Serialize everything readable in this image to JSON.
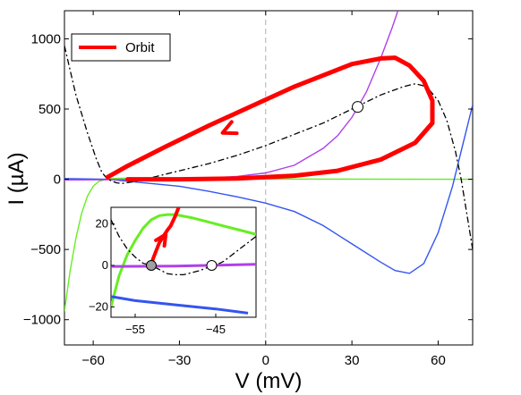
{
  "chart_data": {
    "type": "line",
    "title": "",
    "xlabel": "V (mV)",
    "ylabel": "I (µA)",
    "xlim": [
      -70,
      72
    ],
    "ylim": [
      -1180,
      1200
    ],
    "x_ticks": [
      -60,
      -30,
      0,
      30,
      60
    ],
    "y_ticks": [
      -1000,
      -500,
      0,
      500,
      1000
    ],
    "x_tick_labels": [
      "−60",
      "−30",
      "0",
      "30",
      "60"
    ],
    "y_tick_labels": [
      "−1000",
      "−500",
      "0",
      "500",
      "1000"
    ],
    "legend": {
      "position": "top-left",
      "entries": [
        "Orbit"
      ]
    },
    "series": [
      {
        "name": "Orbit",
        "color": "#ff0000",
        "style": "thick-solid",
        "points": [
          [
            -48,
            0
          ],
          [
            -30,
            0
          ],
          [
            -10,
            5
          ],
          [
            10,
            25
          ],
          [
            25,
            60
          ],
          [
            40,
            140
          ],
          [
            52,
            260
          ],
          [
            58,
            400
          ],
          [
            58,
            560
          ],
          [
            55,
            700
          ],
          [
            50,
            810
          ],
          [
            45,
            865
          ],
          [
            40,
            860
          ],
          [
            30,
            820
          ],
          [
            20,
            740
          ],
          [
            10,
            660
          ],
          [
            -5,
            520
          ],
          [
            -20,
            380
          ],
          [
            -35,
            230
          ],
          [
            -48,
            95
          ],
          [
            -55,
            15
          ]
        ],
        "arrow_at": [
          -15,
          330
        ]
      },
      {
        "name": "",
        "color": "#000000",
        "style": "dash-dot",
        "points": [
          [
            -70,
            950
          ],
          [
            -66,
            600
          ],
          [
            -62,
            330
          ],
          [
            -59,
            150
          ],
          [
            -57,
            50
          ],
          [
            -55,
            0
          ],
          [
            -52,
            -25
          ],
          [
            -50,
            -30
          ],
          [
            -45,
            -15
          ],
          [
            -40,
            10
          ],
          [
            -30,
            60
          ],
          [
            -20,
            110
          ],
          [
            -10,
            170
          ],
          [
            0,
            240
          ],
          [
            10,
            320
          ],
          [
            20,
            400
          ],
          [
            30,
            500
          ],
          [
            40,
            600
          ],
          [
            48,
            660
          ],
          [
            52,
            680
          ],
          [
            56,
            660
          ],
          [
            60,
            560
          ],
          [
            63,
            420
          ],
          [
            66,
            200
          ],
          [
            68,
            0
          ],
          [
            70,
            -250
          ],
          [
            72,
            -500
          ]
        ]
      },
      {
        "name": "",
        "color": "#b040e8",
        "style": "solid",
        "points": [
          [
            -70,
            -5
          ],
          [
            -50,
            -3
          ],
          [
            -30,
            2
          ],
          [
            -20,
            8
          ],
          [
            -10,
            20
          ],
          [
            0,
            45
          ],
          [
            10,
            100
          ],
          [
            20,
            220
          ],
          [
            25,
            310
          ],
          [
            30,
            440
          ],
          [
            35,
            620
          ],
          [
            40,
            860
          ],
          [
            44,
            1080
          ],
          [
            46,
            1200
          ]
        ]
      },
      {
        "name": "",
        "color": "#3355ee",
        "style": "solid",
        "points": [
          [
            -70,
            5
          ],
          [
            -55,
            0
          ],
          [
            -40,
            -30
          ],
          [
            -30,
            -50
          ],
          [
            -20,
            -85
          ],
          [
            -10,
            -125
          ],
          [
            0,
            -170
          ],
          [
            10,
            -230
          ],
          [
            20,
            -330
          ],
          [
            30,
            -460
          ],
          [
            40,
            -590
          ],
          [
            45,
            -650
          ],
          [
            50,
            -670
          ],
          [
            55,
            -600
          ],
          [
            60,
            -380
          ],
          [
            65,
            -50
          ],
          [
            68,
            200
          ],
          [
            72,
            530
          ]
        ]
      },
      {
        "name": "",
        "color": "#66ee22",
        "style": "solid",
        "points": [
          [
            -70,
            -940
          ],
          [
            -68,
            -650
          ],
          [
            -66,
            -420
          ],
          [
            -64,
            -240
          ],
          [
            -62,
            -120
          ],
          [
            -60,
            -50
          ],
          [
            -58,
            -15
          ],
          [
            -56,
            -2
          ],
          [
            -54,
            5
          ],
          [
            -50,
            7
          ],
          [
            -40,
            5
          ],
          [
            -20,
            3
          ],
          [
            0,
            2
          ],
          [
            30,
            1
          ],
          [
            72,
            0
          ]
        ]
      }
    ],
    "markers": [
      {
        "x": 32,
        "y": 515,
        "fill": "#ffffff"
      }
    ],
    "inset": {
      "xlim": [
        -58,
        -40
      ],
      "ylim": [
        -25,
        28
      ],
      "x_ticks": [
        -55,
        -45
      ],
      "y_ticks": [
        -20,
        0,
        20
      ],
      "x_tick_labels": [
        "−55",
        "−45"
      ],
      "y_tick_labels": [
        "−20",
        "0",
        "20"
      ],
      "series": [
        {
          "color": "#66ee22",
          "points": [
            [
              -58,
              -20
            ],
            [
              -57,
              -5
            ],
            [
              -56,
              5
            ],
            [
              -55,
              12
            ],
            [
              -54,
              18
            ],
            [
              -53,
              22
            ],
            [
              -52,
              24
            ],
            [
              -51,
              24.5
            ],
            [
              -50,
              24.5
            ],
            [
              -48,
              23
            ],
            [
              -46,
              21
            ],
            [
              -44,
              19
            ],
            [
              -42,
              17
            ],
            [
              -40,
              15
            ]
          ]
        },
        {
          "color": "#000000",
          "dash": true,
          "points": [
            [
              -58,
              22
            ],
            [
              -57,
              14
            ],
            [
              -56,
              8
            ],
            [
              -55,
              4
            ],
            [
              -54,
              1
            ],
            [
              -53,
              0
            ],
            [
              -52,
              -2
            ],
            [
              -51,
              -4
            ],
            [
              -50,
              -4.5
            ],
            [
              -49,
              -4.5
            ],
            [
              -48,
              -3.5
            ],
            [
              -47,
              -2.5
            ],
            [
              -46,
              -1
            ],
            [
              -45,
              0
            ],
            [
              -44,
              2
            ],
            [
              -43,
              5
            ],
            [
              -42,
              8
            ],
            [
              -41,
              11
            ],
            [
              -40,
              14
            ]
          ]
        },
        {
          "color": "#b040e8",
          "points": [
            [
              -58,
              -0.5
            ],
            [
              -50,
              -0.3
            ],
            [
              -40,
              0.5
            ]
          ]
        },
        {
          "color": "#3355ee",
          "points": [
            [
              -58,
              -15
            ],
            [
              -55,
              -17
            ],
            [
              -50,
              -19
            ],
            [
              -45,
              -21
            ],
            [
              -41,
              -23
            ]
          ]
        },
        {
          "color": "#ff0000",
          "points": [
            [
              -53,
              0
            ],
            [
              -52.8,
              3
            ],
            [
              -52.4,
              7
            ],
            [
              -52,
              11
            ],
            [
              -51.5,
              14
            ],
            [
              -51,
              17
            ],
            [
              -50.6,
              19
            ],
            [
              -50,
              24
            ],
            [
              -49.6,
              28
            ]
          ],
          "arrow_at": [
            -51.2,
            15
          ]
        }
      ],
      "markers": [
        {
          "x": -53,
          "y": 0,
          "fill": "#a0a0a0"
        },
        {
          "x": -45.5,
          "y": 0,
          "fill": "#ffffff"
        }
      ]
    }
  }
}
